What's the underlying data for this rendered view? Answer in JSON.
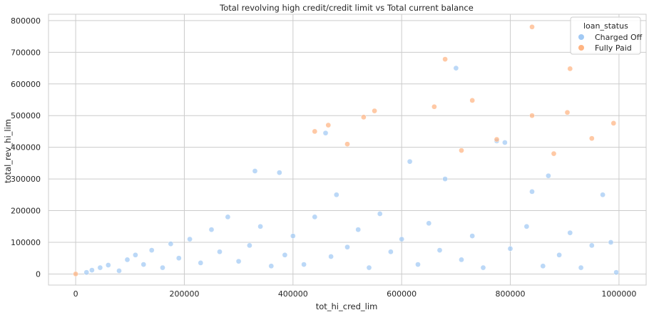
{
  "chart_data": {
    "type": "scatter",
    "title": "Total revolving high credit/credit limit vs Total current balance",
    "xlabel": "tot_hi_cred_lim",
    "ylabel": "total_rev_hi_lim",
    "xlim": [
      -50000,
      1050000
    ],
    "ylim": [
      -35000,
      820000
    ],
    "xticks": [
      0,
      200000,
      400000,
      600000,
      800000,
      1000000
    ],
    "xtick_labels": [
      "0",
      "200000",
      "400000",
      "600000",
      "800000",
      "1000000"
    ],
    "yticks": [
      0,
      100000,
      200000,
      300000,
      400000,
      500000,
      600000,
      700000,
      800000
    ],
    "ytick_labels": [
      "0",
      "100000",
      "200000",
      "300000",
      "400000",
      "500000",
      "600000",
      "700000",
      "800000"
    ],
    "grid": true,
    "legend": {
      "title": "loan_status",
      "placement": "top-right",
      "entries": [
        "Charged Off",
        "Fully Paid"
      ]
    },
    "colors": {
      "Charged Off": "#a1c9f4",
      "Fully Paid": "#ffb482",
      "grid": "#cccccc",
      "frame": "#cccccc"
    },
    "series": [
      {
        "name": "Charged Off",
        "points": [
          [
            20000,
            5000
          ],
          [
            30000,
            12000
          ],
          [
            45000,
            20000
          ],
          [
            60000,
            28000
          ],
          [
            80000,
            10000
          ],
          [
            95000,
            45000
          ],
          [
            110000,
            60000
          ],
          [
            125000,
            30000
          ],
          [
            140000,
            75000
          ],
          [
            160000,
            20000
          ],
          [
            175000,
            95000
          ],
          [
            190000,
            50000
          ],
          [
            210000,
            110000
          ],
          [
            230000,
            35000
          ],
          [
            250000,
            140000
          ],
          [
            265000,
            70000
          ],
          [
            280000,
            180000
          ],
          [
            300000,
            40000
          ],
          [
            320000,
            90000
          ],
          [
            330000,
            325000
          ],
          [
            340000,
            150000
          ],
          [
            360000,
            25000
          ],
          [
            375000,
            320000
          ],
          [
            385000,
            60000
          ],
          [
            400000,
            120000
          ],
          [
            420000,
            30000
          ],
          [
            440000,
            180000
          ],
          [
            460000,
            445000
          ],
          [
            470000,
            55000
          ],
          [
            480000,
            250000
          ],
          [
            500000,
            85000
          ],
          [
            520000,
            140000
          ],
          [
            540000,
            20000
          ],
          [
            560000,
            190000
          ],
          [
            580000,
            70000
          ],
          [
            600000,
            110000
          ],
          [
            615000,
            355000
          ],
          [
            630000,
            30000
          ],
          [
            650000,
            160000
          ],
          [
            670000,
            75000
          ],
          [
            680000,
            300000
          ],
          [
            700000,
            650000
          ],
          [
            710000,
            45000
          ],
          [
            730000,
            120000
          ],
          [
            750000,
            20000
          ],
          [
            775000,
            420000
          ],
          [
            790000,
            415000
          ],
          [
            800000,
            80000
          ],
          [
            830000,
            150000
          ],
          [
            840000,
            260000
          ],
          [
            860000,
            25000
          ],
          [
            870000,
            310000
          ],
          [
            890000,
            60000
          ],
          [
            910000,
            130000
          ],
          [
            930000,
            20000
          ],
          [
            950000,
            90000
          ],
          [
            970000,
            250000
          ],
          [
            985000,
            100000
          ],
          [
            995000,
            5000
          ]
        ]
      },
      {
        "name": "Fully Paid",
        "points": [
          [
            0,
            0
          ],
          [
            840000,
            780000
          ],
          [
            680000,
            678000
          ],
          [
            910000,
            648000
          ],
          [
            730000,
            548000
          ],
          [
            550000,
            515000
          ],
          [
            530000,
            495000
          ],
          [
            660000,
            528000
          ],
          [
            840000,
            500000
          ],
          [
            905000,
            510000
          ],
          [
            990000,
            476000
          ],
          [
            950000,
            428000
          ],
          [
            465000,
            470000
          ],
          [
            440000,
            450000
          ],
          [
            775000,
            425000
          ],
          [
            710000,
            390000
          ],
          [
            880000,
            380000
          ],
          [
            500000,
            410000
          ]
        ]
      }
    ]
  }
}
